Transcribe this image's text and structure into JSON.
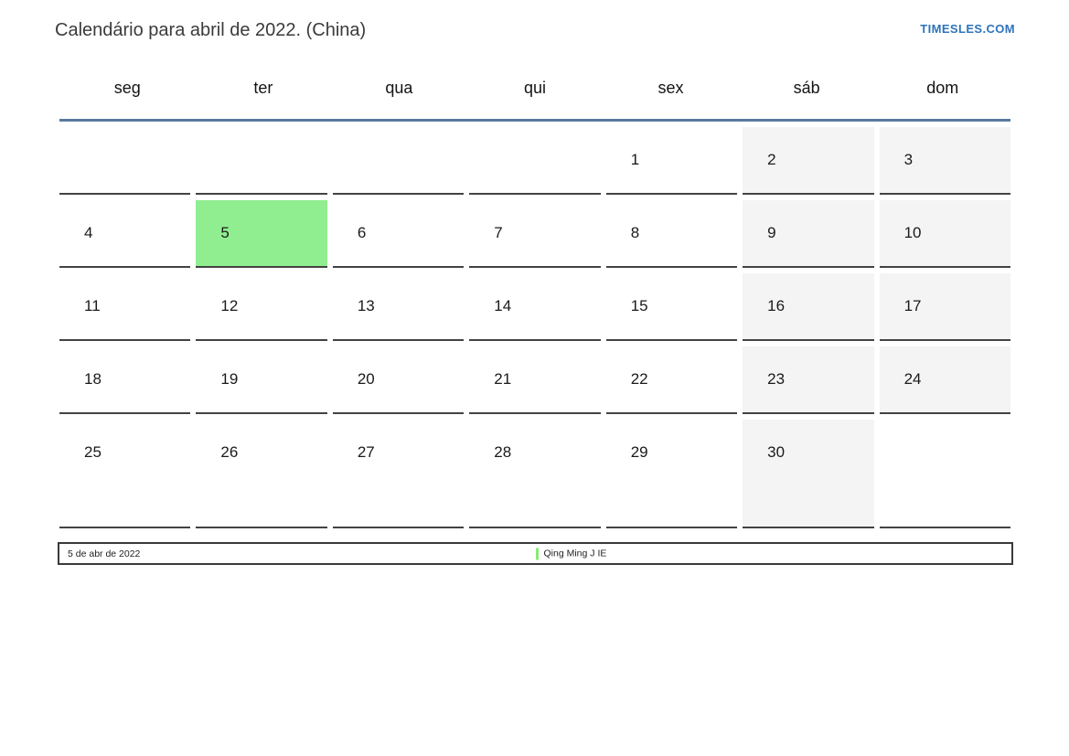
{
  "header": {
    "title": "Calendário para abril de 2022. (China)",
    "site_link": "TIMESLES.COM"
  },
  "calendar": {
    "weekday_headers": [
      "seg",
      "ter",
      "qua",
      "qui",
      "sex",
      "sáb",
      "dom"
    ],
    "weeks": [
      [
        "",
        "",
        "",
        "",
        "1",
        "2",
        "3"
      ],
      [
        "4",
        "5",
        "6",
        "7",
        "8",
        "9",
        "10"
      ],
      [
        "11",
        "12",
        "13",
        "14",
        "15",
        "16",
        "17"
      ],
      [
        "18",
        "19",
        "20",
        "21",
        "22",
        "23",
        "24"
      ],
      [
        "25",
        "26",
        "27",
        "28",
        "29",
        "30",
        ""
      ]
    ],
    "weekend_columns": [
      5,
      6
    ],
    "highlighted_day": "5",
    "colors": {
      "weekend_bg": "#f4f4f4",
      "highlight_bg": "#90ee90",
      "header_rule": "#5a7a9e",
      "cell_border": "#434343",
      "link": "#2e74bb"
    }
  },
  "footer": {
    "date_label": "5 de abr de 2022",
    "legend": [
      {
        "label": "Qing Ming J IE",
        "color": "#87eb73"
      }
    ]
  }
}
